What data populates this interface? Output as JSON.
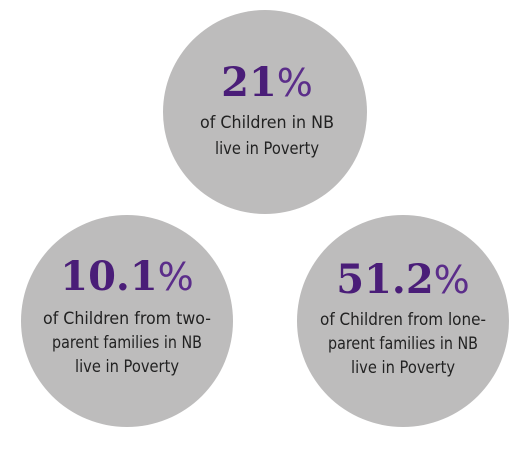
{
  "stats": [
    {
      "figure": "21",
      "unit": "%",
      "lines": [
        "of Children in NB",
        "live in Poverty"
      ]
    },
    {
      "figure": "10.1",
      "unit": "%",
      "lines": [
        "of Children from two-",
        "parent families in NB",
        "live in Poverty"
      ]
    },
    {
      "figure": "51.2",
      "unit": "%",
      "lines": [
        "of Children from lone-",
        "parent families in NB",
        "live in Poverty"
      ]
    }
  ]
}
